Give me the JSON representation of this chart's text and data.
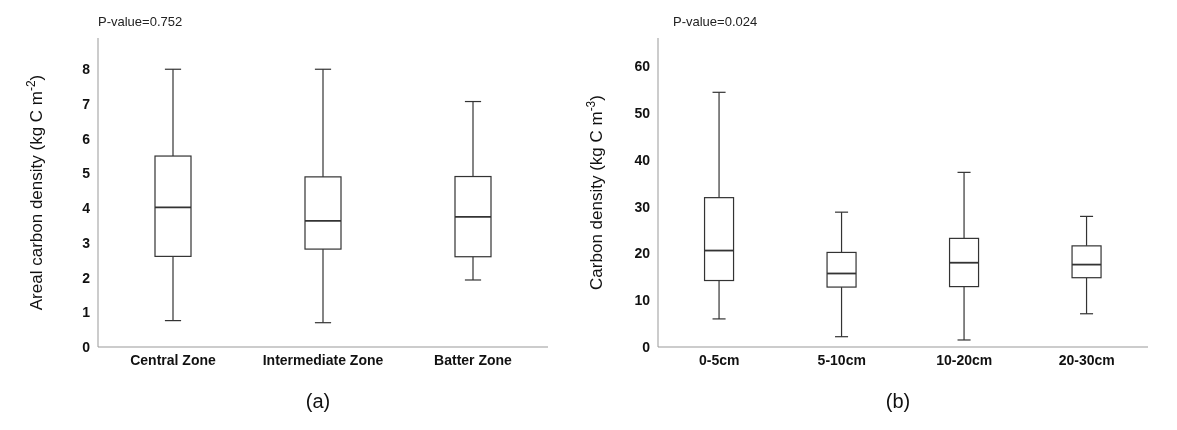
{
  "chart_data": [
    {
      "type": "box",
      "title": "(a)",
      "ylabel": "Areal carbon density (kg C m$^{-2}$)",
      "annotations": [
        "P-value=0.752"
      ],
      "categories": [
        "Central Zone",
        "Intermediate Zone",
        "Batter Zone"
      ],
      "ylim": [
        0,
        8.9
      ],
      "yticks": [
        0,
        1,
        2,
        3,
        4,
        5,
        6,
        7,
        8
      ],
      "grid": false,
      "color": "#333333",
      "boxes": [
        {
          "low": 0.76,
          "q1": 2.61,
          "median": 4.02,
          "q3": 5.5,
          "high": 8.0
        },
        {
          "low": 0.7,
          "q1": 2.82,
          "median": 3.63,
          "q3": 4.9,
          "high": 8.0
        },
        {
          "low": 1.93,
          "q1": 2.6,
          "median": 3.75,
          "q3": 4.91,
          "high": 7.07
        }
      ]
    },
    {
      "type": "box",
      "title": "(b)",
      "ylabel": "Carbon density (kg C m$^{-3}$)",
      "annotations": [
        "P-value=0.024"
      ],
      "categories": [
        "0-5cm",
        "5-10cm",
        "10-20cm",
        "20-30cm"
      ],
      "ylim": [
        0,
        66
      ],
      "yticks": [
        0,
        10,
        20,
        30,
        40,
        50,
        60
      ],
      "grid": false,
      "color": "#333333",
      "boxes": [
        {
          "low": 6.0,
          "q1": 14.2,
          "median": 20.6,
          "q3": 31.9,
          "high": 54.4
        },
        {
          "low": 2.2,
          "q1": 12.8,
          "median": 15.7,
          "q3": 20.2,
          "high": 28.8
        },
        {
          "low": 1.5,
          "q1": 12.9,
          "median": 18.0,
          "q3": 23.2,
          "high": 37.3
        },
        {
          "low": 7.1,
          "q1": 14.8,
          "median": 17.6,
          "q3": 21.6,
          "high": 27.9
        }
      ]
    }
  ]
}
